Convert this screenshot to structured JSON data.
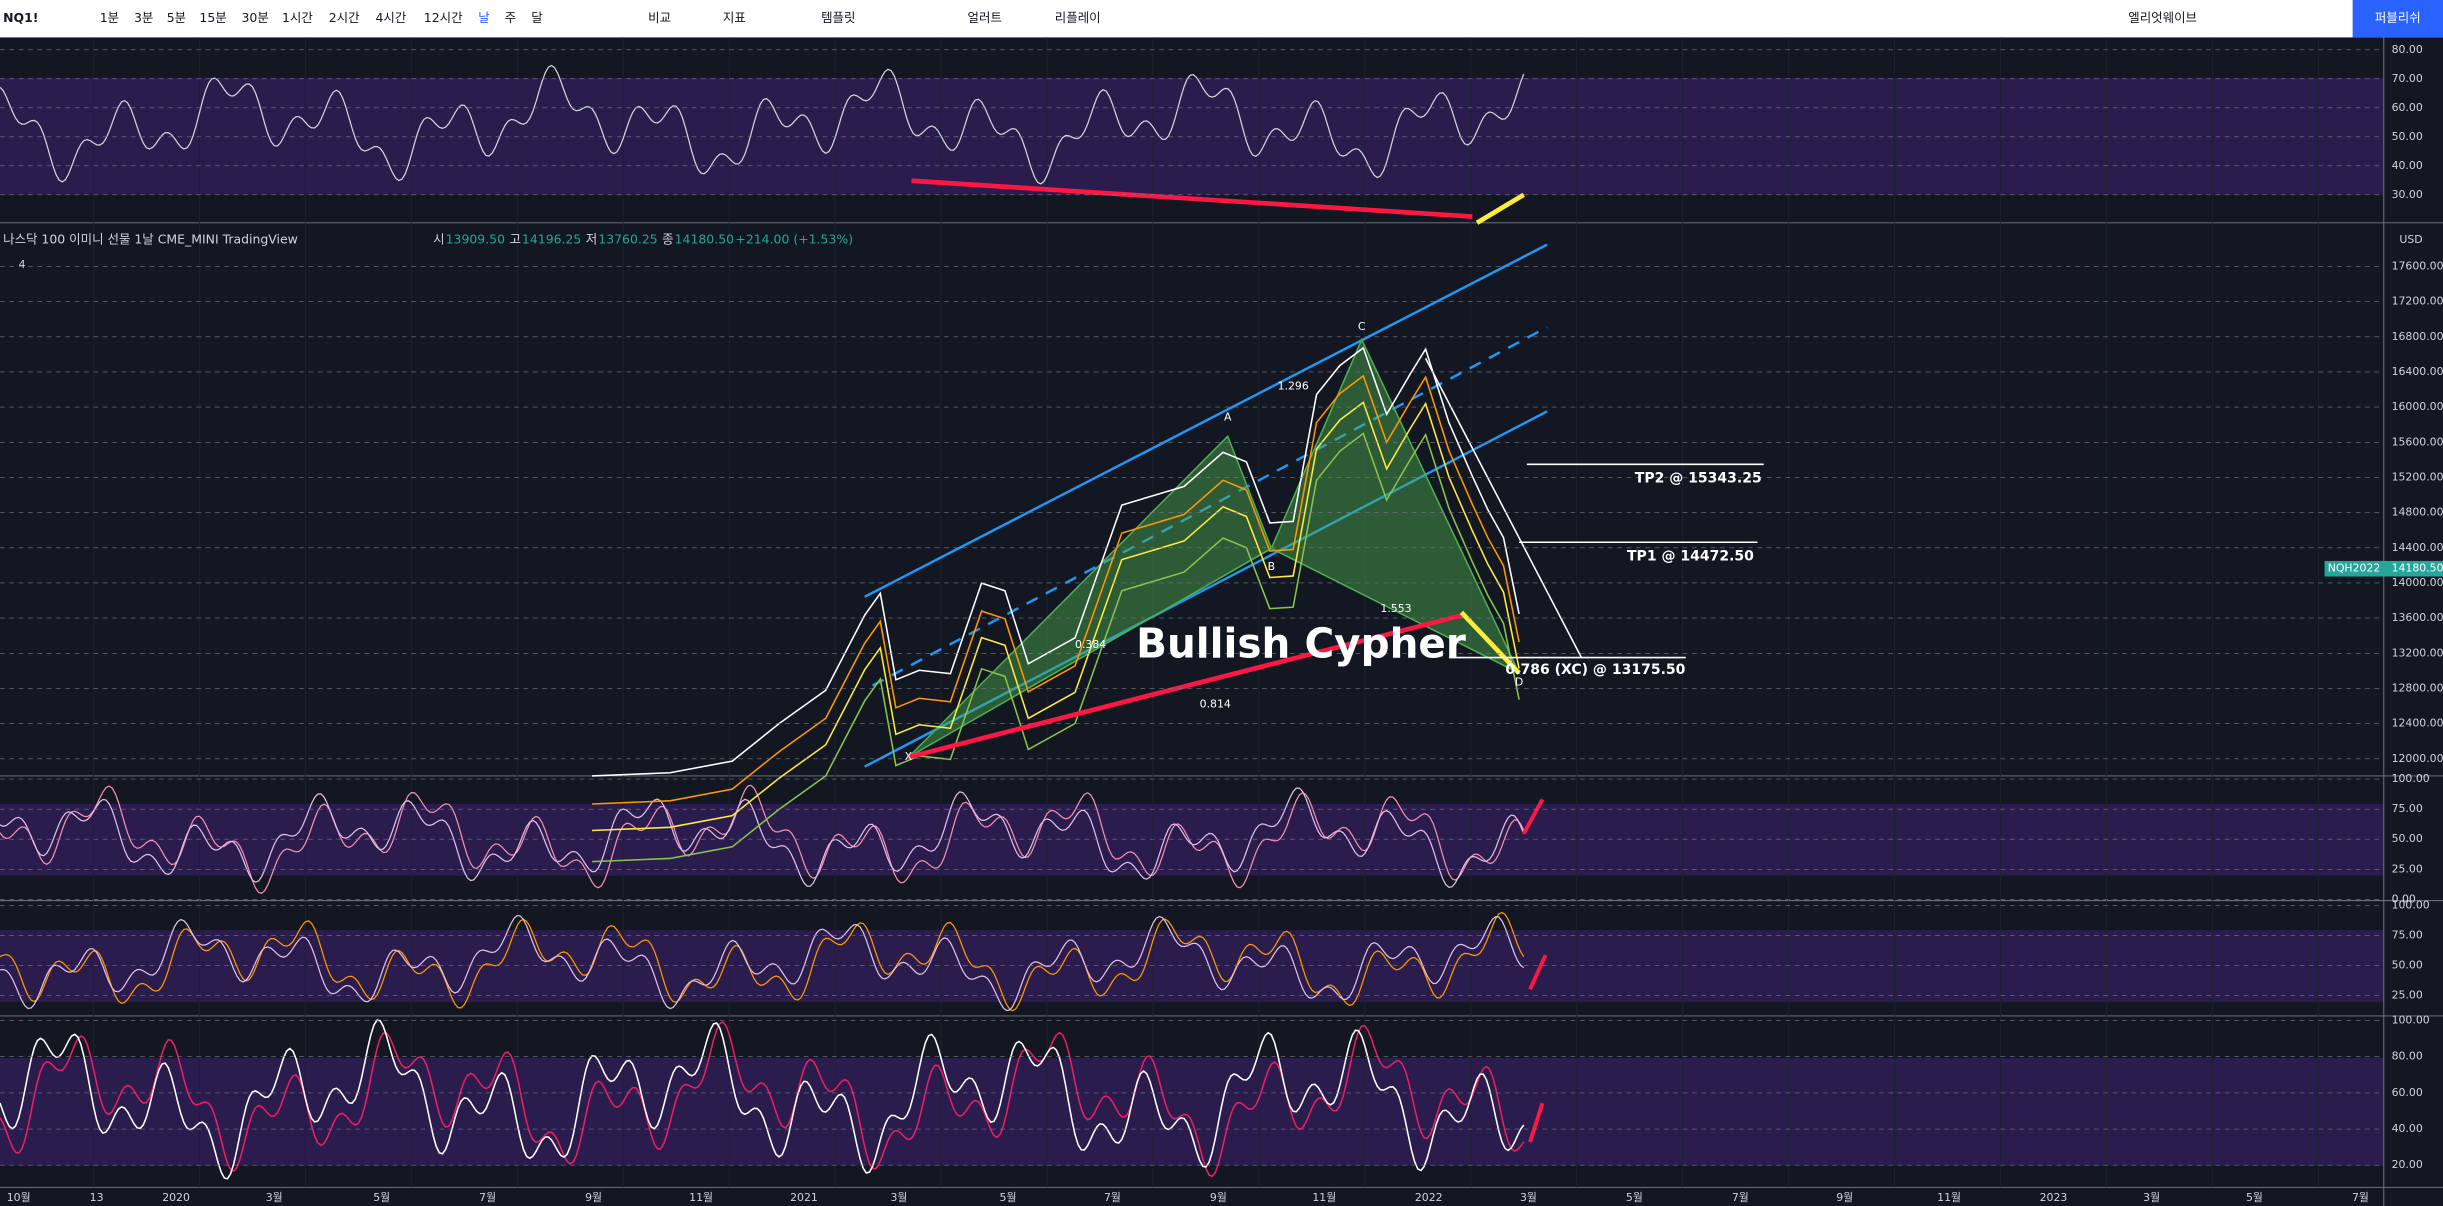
{
  "toolbar": {
    "symbol": "NQ1!",
    "intervals": [
      "1분",
      "3분",
      "5분",
      "15분",
      "30분",
      "1시간",
      "2시간",
      "4시간",
      "12시간",
      "날",
      "주",
      "달"
    ],
    "compare": "비교",
    "indicators": "지표",
    "templates": "템플릿",
    "alert": "얼러트",
    "replay": "리플레이",
    "layout": "엘리엇웨이브",
    "publish": "퍼블리쉬"
  },
  "legend": {
    "title": "나스닥 100 이미니 선물  1날  CME_MINI  TradingView",
    "ohlc": [
      [
        "시",
        "13909.50"
      ],
      [
        "고",
        "14196.25"
      ],
      [
        "저",
        "13760.25"
      ],
      [
        "종",
        "14180.50"
      ]
    ],
    "change": "+214.00 (+1.53%)",
    "count": "4"
  },
  "rsi_axis": [
    "80.00",
    "70.00",
    "60.00",
    "50.00",
    "40.00",
    "30.00"
  ],
  "price_axis": [
    "17600.00",
    "17200.00",
    "16800.00",
    "16400.00",
    "16000.00",
    "15600.00",
    "15200.00",
    "14800.00",
    "14400.00",
    "14000.00",
    "13600.00",
    "13200.00",
    "12800.00",
    "12400.00",
    "12000.00"
  ],
  "currency": "USD",
  "price_tag": {
    "symbol": "NQH2022",
    "price": "14180.50"
  },
  "pane2_axis": [
    "100.00",
    "75.00",
    "50.00",
    "25.00",
    "0.00"
  ],
  "pane3_axis": [
    "100.00",
    "75.00",
    "50.00",
    "25.00"
  ],
  "pane4_axis": [
    "100.00",
    "80.00",
    "60.00",
    "40.00",
    "20.00"
  ],
  "time_axis": [
    "10월",
    "13",
    "2020",
    "3월",
    "5월",
    "7월",
    "9월",
    "11월",
    "2021",
    "3월",
    "5월",
    "7월",
    "9월",
    "11월",
    "2022",
    "3월",
    "5월",
    "7월",
    "9월",
    "11월",
    "2023",
    "3월",
    "5월",
    "7월"
  ],
  "pattern": {
    "title": "Bullish Cypher",
    "points": [
      "X",
      "A",
      "B",
      "C",
      "D"
    ],
    "ratios": [
      "0.384",
      "1.296",
      "1.553",
      "0.814"
    ],
    "targets": [
      "TP2 @ 15343.25",
      "TP1 @ 14472.50",
      "0.786 (XC) @ 13175.50"
    ]
  }
}
